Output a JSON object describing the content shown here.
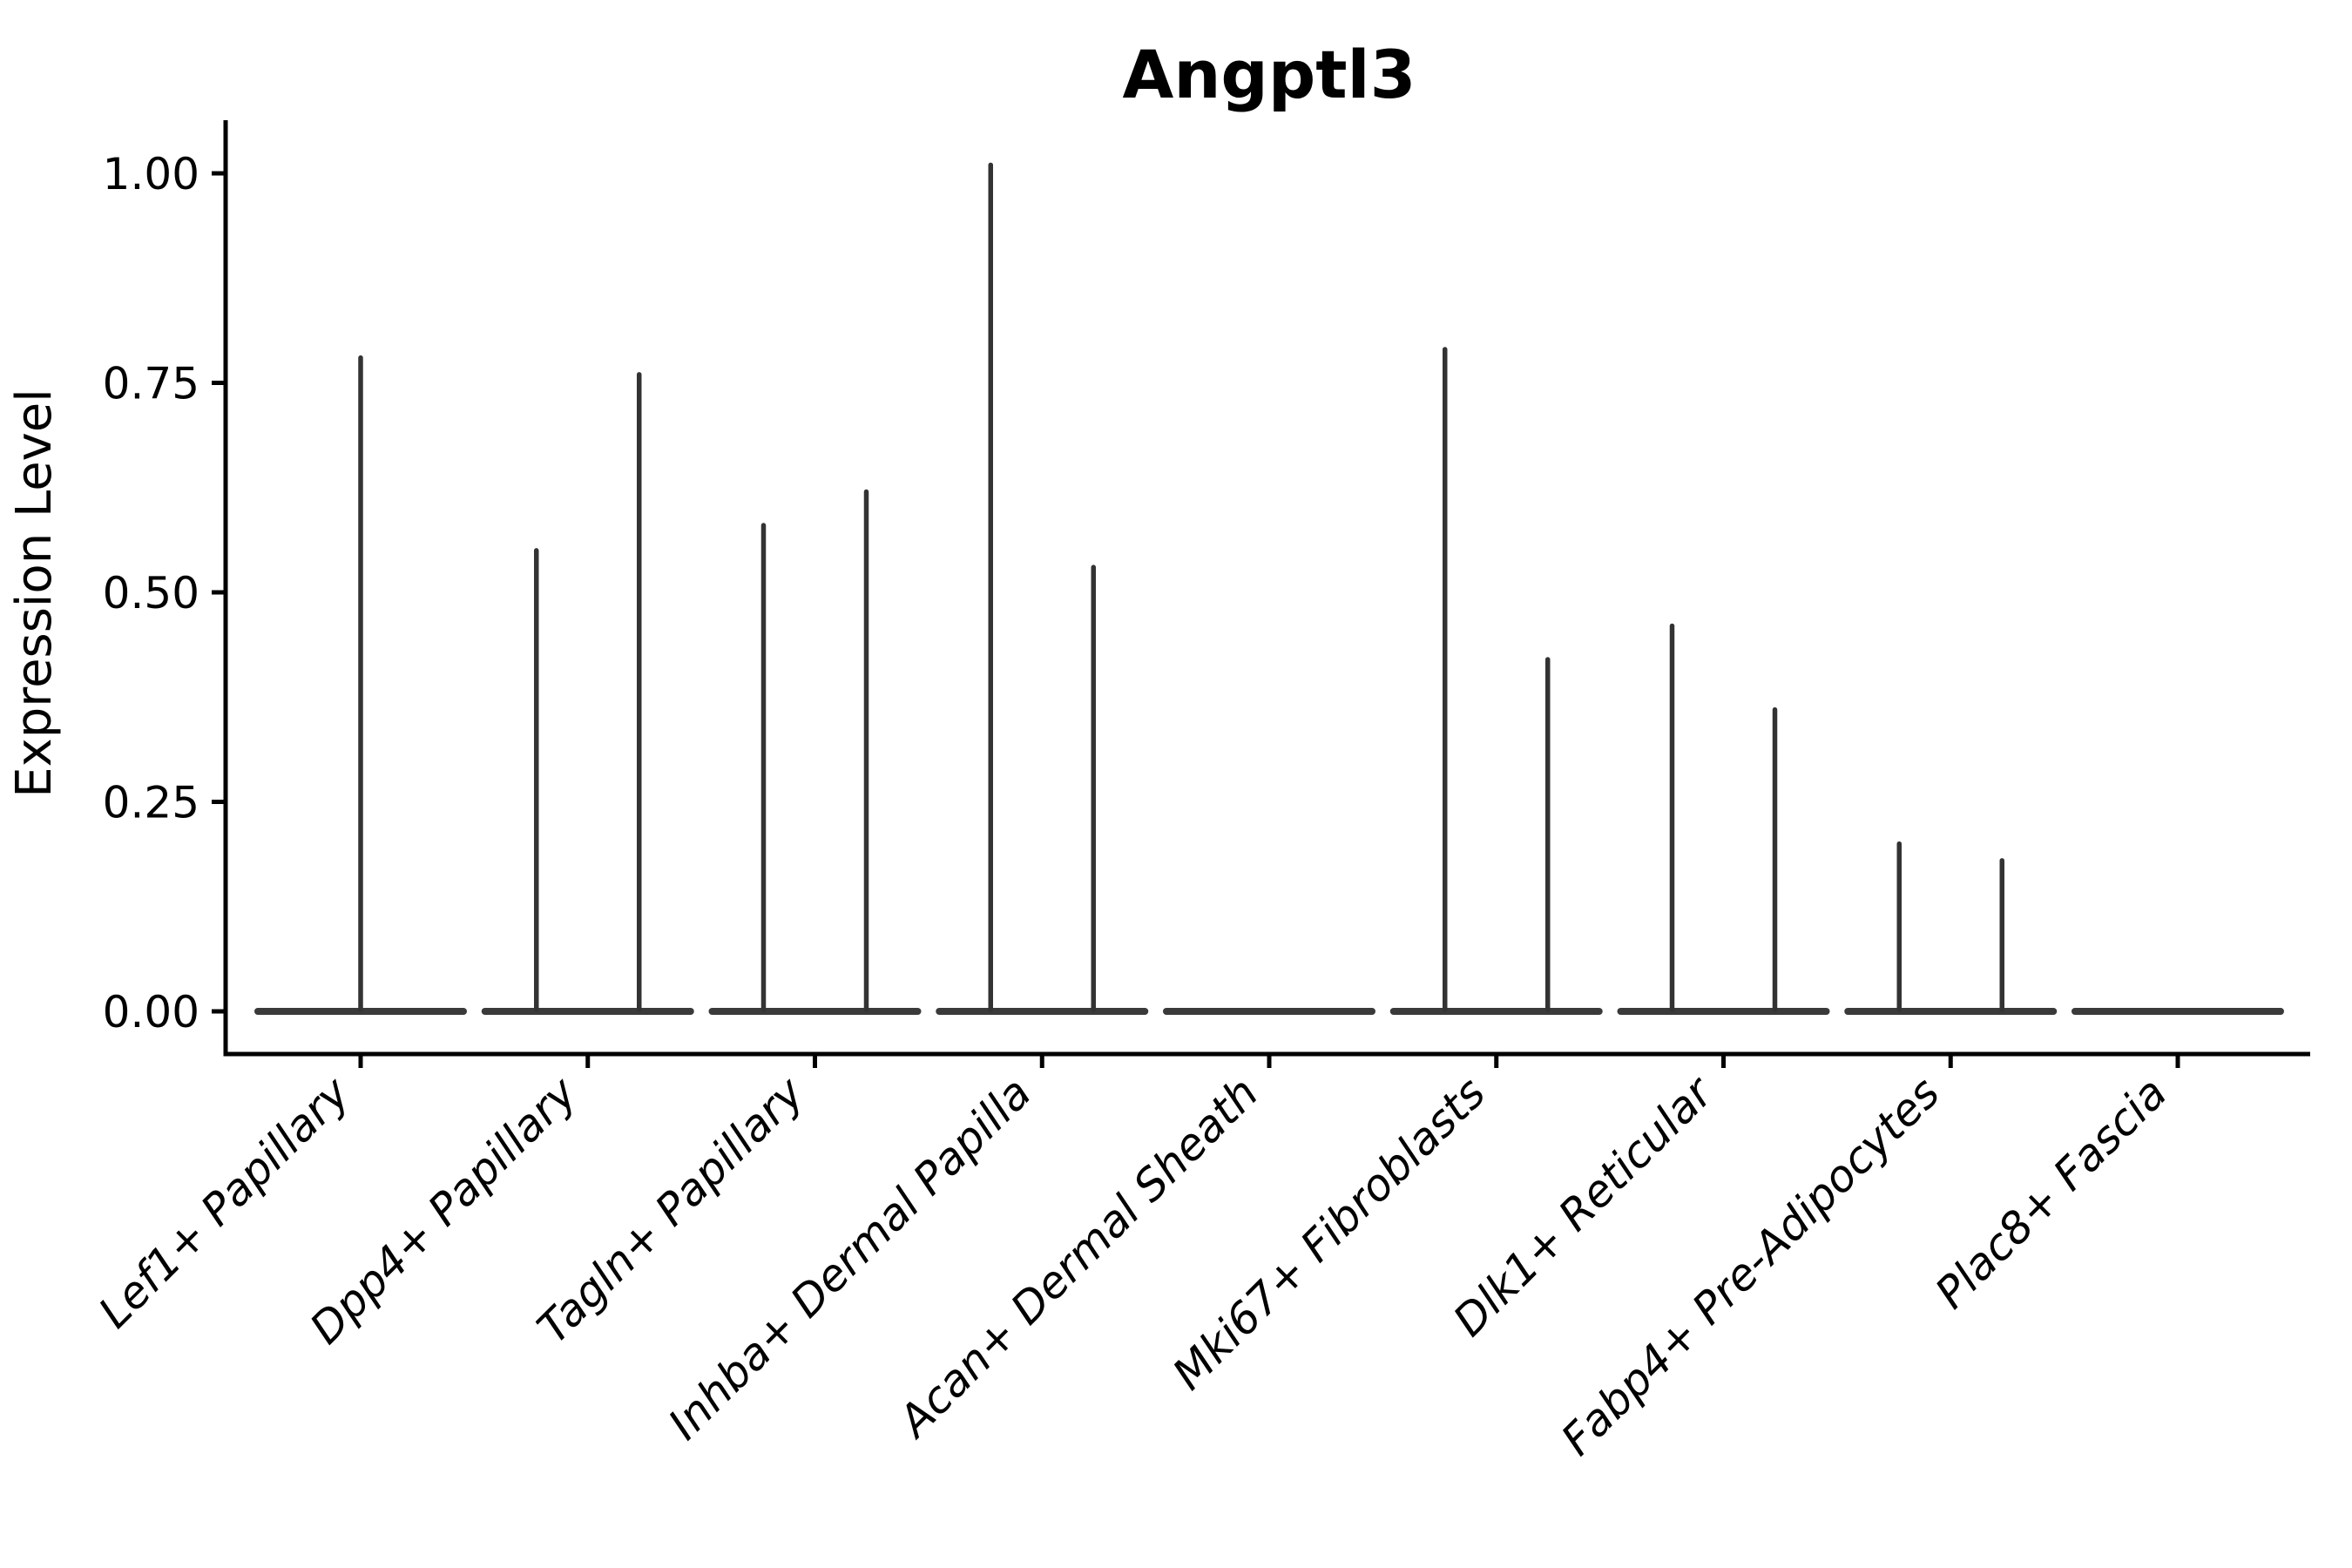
{
  "chart_data": {
    "type": "violin",
    "title": "Angptl3",
    "ylabel": "Expression Level",
    "xlabel": "",
    "grid": false,
    "legend": null,
    "ylim": [
      -0.05,
      1.06
    ],
    "yticks": [
      {
        "value": 1.0,
        "label": "1.00"
      },
      {
        "value": 0.75,
        "label": "0.75"
      },
      {
        "value": 0.5,
        "label": "0.50"
      },
      {
        "value": 0.25,
        "label": "0.25"
      },
      {
        "value": 0.0,
        "label": "0.00"
      }
    ],
    "categories": [
      "Lef1+ Papillary",
      "Dpp4+ Papillary",
      "Tagln+ Papillary",
      "Inhba+ Dermal Papilla",
      "Acan+ Dermal Sheath",
      "Mki67+ Fibroblasts",
      "Dlk1+ Reticular",
      "Fabp4+ Pre-Adipocytes",
      "Plac8+ Fascia"
    ],
    "violins": [
      {
        "category": "Lef1+ Papillary",
        "spikes": [
          {
            "side": "center",
            "max": 0.78
          }
        ]
      },
      {
        "category": "Dpp4+ Papillary",
        "spikes": [
          {
            "side": "left",
            "max": 0.55
          },
          {
            "side": "right",
            "max": 0.76
          }
        ]
      },
      {
        "category": "Tagln+ Papillary",
        "spikes": [
          {
            "side": "left",
            "max": 0.58
          },
          {
            "side": "right",
            "max": 0.62
          }
        ]
      },
      {
        "category": "Inhba+ Dermal Papilla",
        "spikes": [
          {
            "side": "left",
            "max": 1.01
          },
          {
            "side": "right",
            "max": 0.53
          }
        ]
      },
      {
        "category": "Acan+ Dermal Sheath",
        "spikes": []
      },
      {
        "category": "Mki67+ Fibroblasts",
        "spikes": [
          {
            "side": "left",
            "max": 0.79
          },
          {
            "side": "right",
            "max": 0.42
          }
        ]
      },
      {
        "category": "Dlk1+ Reticular",
        "spikes": [
          {
            "side": "left",
            "max": 0.46
          },
          {
            "side": "right",
            "max": 0.36
          }
        ]
      },
      {
        "category": "Fabp4+ Pre-Adipocytes",
        "spikes": [
          {
            "side": "left",
            "max": 0.2
          },
          {
            "side": "right",
            "max": 0.18
          }
        ]
      },
      {
        "category": "Plac8+ Fascia",
        "spikes": []
      }
    ],
    "colors": {
      "background": "#ffffff",
      "axis": "#000000",
      "text": "#000000",
      "violin": "#3a3a3a",
      "spike": "#333333"
    }
  }
}
